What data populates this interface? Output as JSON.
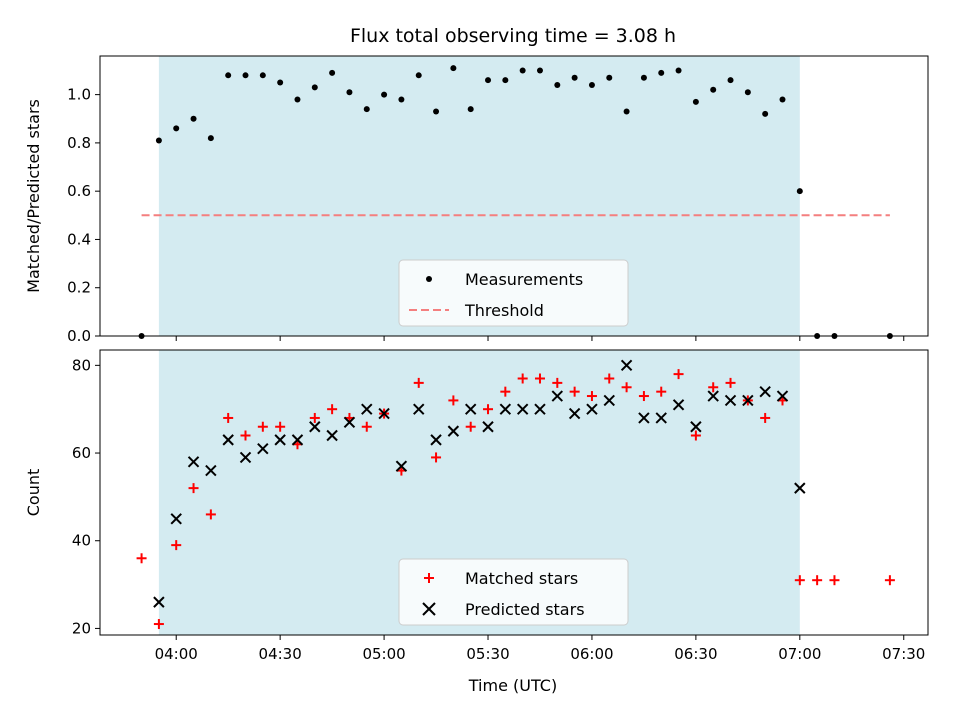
{
  "title": "Flux total observing time = 3.08 h",
  "xlabel": "Time (UTC)",
  "x_ticks": [
    "04:00",
    "04:30",
    "05:00",
    "05:30",
    "06:00",
    "06:30",
    "07:00",
    "07:30"
  ],
  "colors": {
    "shade": "#d4ebf1",
    "measurement": "#000000",
    "threshold": "#f47f7f",
    "matched": "#ff0000",
    "predicted": "#000000"
  },
  "chart_data": [
    {
      "type": "scatter",
      "ylabel": "Matched/Predicted stars",
      "ylim": [
        0,
        1.16
      ],
      "yticks": [
        "0.0",
        "0.2",
        "0.4",
        "0.6",
        "0.8",
        "1.0"
      ],
      "xlim": [
        "03:38",
        "07:37"
      ],
      "shaded_region": [
        "03:55",
        "07:00"
      ],
      "threshold": 0.5,
      "threshold_range": [
        "03:50",
        "07:26"
      ],
      "legend": {
        "placement": "lower-center",
        "entries": [
          "Measurements",
          "Threshold"
        ]
      },
      "series": [
        {
          "name": "Measurements",
          "x": [
            "03:50",
            "03:55",
            "04:00",
            "04:05",
            "04:10",
            "04:15",
            "04:20",
            "04:25",
            "04:30",
            "04:35",
            "04:40",
            "04:45",
            "04:50",
            "04:55",
            "05:00",
            "05:05",
            "05:10",
            "05:15",
            "05:20",
            "05:25",
            "05:30",
            "05:35",
            "05:40",
            "05:45",
            "05:50",
            "05:55",
            "06:00",
            "06:05",
            "06:10",
            "06:15",
            "06:20",
            "06:25",
            "06:30",
            "06:35",
            "06:40",
            "06:45",
            "06:50",
            "06:55",
            "07:00",
            "07:05",
            "07:10",
            "07:26"
          ],
          "y": [
            0.0,
            0.81,
            0.86,
            0.9,
            0.82,
            1.08,
            1.08,
            1.08,
            1.05,
            0.98,
            1.03,
            1.09,
            1.01,
            0.94,
            1.0,
            0.98,
            1.08,
            0.93,
            1.11,
            0.94,
            1.06,
            1.06,
            1.1,
            1.1,
            1.04,
            1.07,
            1.04,
            1.07,
            0.93,
            1.07,
            1.09,
            1.1,
            0.97,
            1.02,
            1.06,
            1.01,
            0.92,
            0.98,
            0.6,
            0.0,
            0.0,
            0.0
          ]
        }
      ]
    },
    {
      "type": "scatter",
      "ylabel": "Count",
      "ylim": [
        18.5,
        83.5
      ],
      "yticks": [
        "20",
        "40",
        "60",
        "80"
      ],
      "xlim": [
        "03:38",
        "07:37"
      ],
      "shaded_region": [
        "03:55",
        "07:00"
      ],
      "legend": {
        "placement": "lower-center",
        "entries": [
          "Matched stars",
          "Predicted stars"
        ]
      },
      "series": [
        {
          "name": "Matched stars",
          "x": [
            "03:50",
            "03:55",
            "04:00",
            "04:05",
            "04:10",
            "04:15",
            "04:20",
            "04:25",
            "04:30",
            "04:35",
            "04:40",
            "04:45",
            "04:50",
            "04:55",
            "05:00",
            "05:05",
            "05:10",
            "05:15",
            "05:20",
            "05:25",
            "05:30",
            "05:35",
            "05:40",
            "05:45",
            "05:50",
            "05:55",
            "06:00",
            "06:05",
            "06:10",
            "06:15",
            "06:20",
            "06:25",
            "06:30",
            "06:35",
            "06:40",
            "06:45",
            "06:50",
            "06:55",
            "07:00",
            "07:05",
            "07:10",
            "07:26"
          ],
          "y": [
            36,
            21,
            39,
            52,
            46,
            68,
            64,
            66,
            66,
            62,
            68,
            70,
            68,
            66,
            69,
            56,
            76,
            59,
            72,
            66,
            70,
            74,
            77,
            77,
            76,
            74,
            73,
            77,
            75,
            73,
            74,
            78,
            64,
            75,
            76,
            72,
            68,
            72,
            31,
            31,
            31,
            31
          ]
        },
        {
          "name": "Predicted stars",
          "x": [
            "03:55",
            "04:00",
            "04:05",
            "04:10",
            "04:15",
            "04:20",
            "04:25",
            "04:30",
            "04:35",
            "04:40",
            "04:45",
            "04:50",
            "04:55",
            "05:00",
            "05:05",
            "05:10",
            "05:15",
            "05:20",
            "05:25",
            "05:30",
            "05:35",
            "05:40",
            "05:45",
            "05:50",
            "05:55",
            "06:00",
            "06:05",
            "06:10",
            "06:15",
            "06:20",
            "06:25",
            "06:30",
            "06:35",
            "06:40",
            "06:45",
            "06:50",
            "06:55",
            "07:00"
          ],
          "y": [
            26,
            45,
            58,
            56,
            63,
            59,
            61,
            63,
            63,
            66,
            64,
            67,
            70,
            69,
            57,
            70,
            63,
            65,
            70,
            66,
            70,
            70,
            70,
            73,
            69,
            70,
            72,
            80,
            68,
            68,
            71,
            66,
            73,
            72,
            72,
            74,
            73,
            52
          ]
        }
      ]
    }
  ]
}
